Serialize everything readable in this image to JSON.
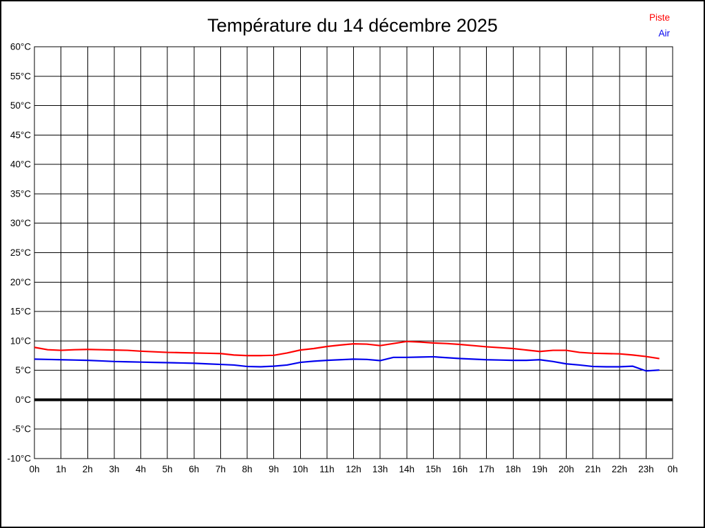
{
  "page": {
    "title": "Température du 14 décembre 2025"
  },
  "legend": {
    "position": "top-right",
    "items": [
      {
        "label": "Piste",
        "color": "#ff0000"
      },
      {
        "label": "Air",
        "color": "#0000ee"
      }
    ]
  },
  "chart_data": {
    "type": "line",
    "title": "Température du 14 décembre 2025",
    "xlabel": "",
    "ylabel": "",
    "xlim": [
      0,
      24
    ],
    "ylim": [
      -10,
      60
    ],
    "grid": true,
    "grid_color": "#000000",
    "background_color": "#ffffff",
    "zero_line": {
      "value": 0,
      "color": "#000000",
      "width": 4
    },
    "x_ticks": [
      [
        0,
        "0h"
      ],
      [
        1,
        "1h"
      ],
      [
        2,
        "2h"
      ],
      [
        3,
        "3h"
      ],
      [
        4,
        "4h"
      ],
      [
        5,
        "5h"
      ],
      [
        6,
        "6h"
      ],
      [
        7,
        "7h"
      ],
      [
        8,
        "8h"
      ],
      [
        9,
        "9h"
      ],
      [
        10,
        "10h"
      ],
      [
        11,
        "11h"
      ],
      [
        12,
        "12h"
      ],
      [
        13,
        "13h"
      ],
      [
        14,
        "14h"
      ],
      [
        15,
        "15h"
      ],
      [
        16,
        "16h"
      ],
      [
        17,
        "17h"
      ],
      [
        18,
        "18h"
      ],
      [
        19,
        "19h"
      ],
      [
        20,
        "20h"
      ],
      [
        21,
        "21h"
      ],
      [
        22,
        "22h"
      ],
      [
        23,
        "23h"
      ],
      [
        24,
        "0h"
      ]
    ],
    "y_ticks": [
      [
        60,
        "60°C"
      ],
      [
        55,
        "55°C"
      ],
      [
        50,
        "50°C"
      ],
      [
        45,
        "45°C"
      ],
      [
        40,
        "40°C"
      ],
      [
        35,
        "35°C"
      ],
      [
        30,
        "30°C"
      ],
      [
        25,
        "25°C"
      ],
      [
        20,
        "20°C"
      ],
      [
        15,
        "15°C"
      ],
      [
        10,
        "10°C"
      ],
      [
        5,
        "5°C"
      ],
      [
        0,
        "0°C"
      ],
      [
        -5,
        "-5°C"
      ],
      [
        -10,
        "-10°C"
      ]
    ],
    "x": [
      0,
      0.5,
      1,
      1.5,
      2,
      2.5,
      3,
      3.5,
      4,
      4.5,
      5,
      5.5,
      6,
      6.5,
      7,
      7.5,
      8,
      8.5,
      9,
      9.5,
      10,
      10.5,
      11,
      11.5,
      12,
      12.5,
      13,
      13.5,
      14,
      14.5,
      15,
      15.5,
      16,
      16.5,
      17,
      17.5,
      18,
      18.5,
      19,
      19.5,
      20,
      20.5,
      21,
      21.5,
      22,
      22.5,
      23,
      23.5
    ],
    "series": [
      {
        "name": "Piste",
        "color": "#ff0000",
        "width": 2.2,
        "values": [
          8.9,
          8.5,
          8.4,
          8.5,
          8.55,
          8.5,
          8.45,
          8.4,
          8.25,
          8.15,
          8.05,
          8.0,
          7.95,
          7.9,
          7.85,
          7.6,
          7.5,
          7.5,
          7.55,
          7.95,
          8.45,
          8.7,
          9.05,
          9.3,
          9.5,
          9.45,
          9.2,
          9.55,
          9.9,
          9.8,
          9.65,
          9.55,
          9.4,
          9.2,
          9.0,
          8.85,
          8.7,
          8.45,
          8.2,
          8.4,
          8.4,
          8.05,
          7.9,
          7.85,
          7.8,
          7.6,
          7.35,
          7.0
        ]
      },
      {
        "name": "Air",
        "color": "#0000ee",
        "width": 2.2,
        "values": [
          6.9,
          6.85,
          6.8,
          6.75,
          6.7,
          6.6,
          6.5,
          6.45,
          6.4,
          6.35,
          6.3,
          6.25,
          6.2,
          6.1,
          6.0,
          5.9,
          5.65,
          5.6,
          5.7,
          5.9,
          6.35,
          6.55,
          6.7,
          6.8,
          6.9,
          6.85,
          6.65,
          7.2,
          7.2,
          7.25,
          7.3,
          7.15,
          7.0,
          6.9,
          6.8,
          6.75,
          6.7,
          6.7,
          6.8,
          6.5,
          6.1,
          5.9,
          5.65,
          5.6,
          5.6,
          5.7,
          4.9,
          5.05
        ]
      }
    ]
  }
}
